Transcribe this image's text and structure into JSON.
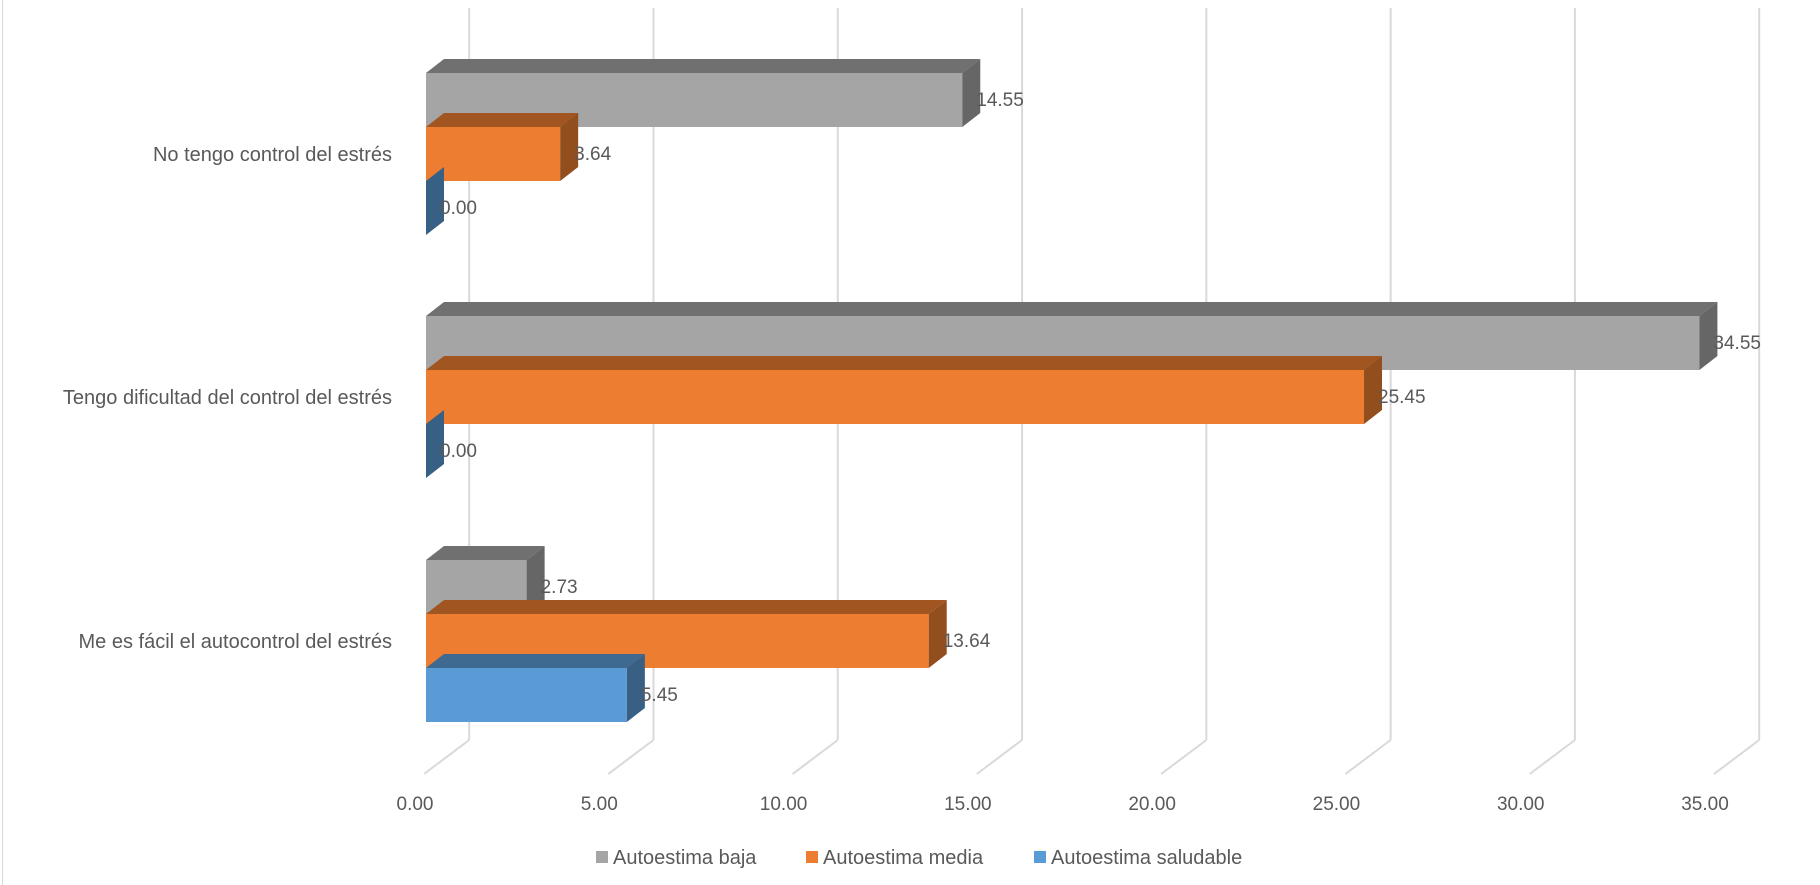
{
  "chart_data": {
    "type": "bar",
    "orientation": "horizontal",
    "style": "3d",
    "categories": [
      "No tengo control del estrés",
      "Tengo dificultad del control del estrés",
      "Me es fácil el autocontrol del estrés"
    ],
    "series": [
      {
        "name": "Autoestima baja",
        "color": "#a5a5a5",
        "values": [
          14.55,
          34.55,
          2.73
        ],
        "labels": [
          "14.55",
          "34.55",
          "2.73"
        ]
      },
      {
        "name": "Autoestima media",
        "color": "#ed7d31",
        "values": [
          3.64,
          25.45,
          13.64
        ],
        "labels": [
          "3.64",
          "25.45",
          "13.64"
        ]
      },
      {
        "name": "Autoestima saludable",
        "color": "#5b9bd5",
        "values": [
          0.0,
          0.0,
          5.45
        ],
        "labels": [
          "0.00",
          "0.00",
          "5.45"
        ]
      }
    ],
    "xlim": [
      0,
      35
    ],
    "xticks": [
      "0.00",
      "5.00",
      "10.00",
      "15.00",
      "20.00",
      "25.00",
      "30.00",
      "35.00"
    ],
    "grid": true,
    "legend_position": "bottom",
    "xlabel": "",
    "ylabel": "",
    "title": ""
  }
}
